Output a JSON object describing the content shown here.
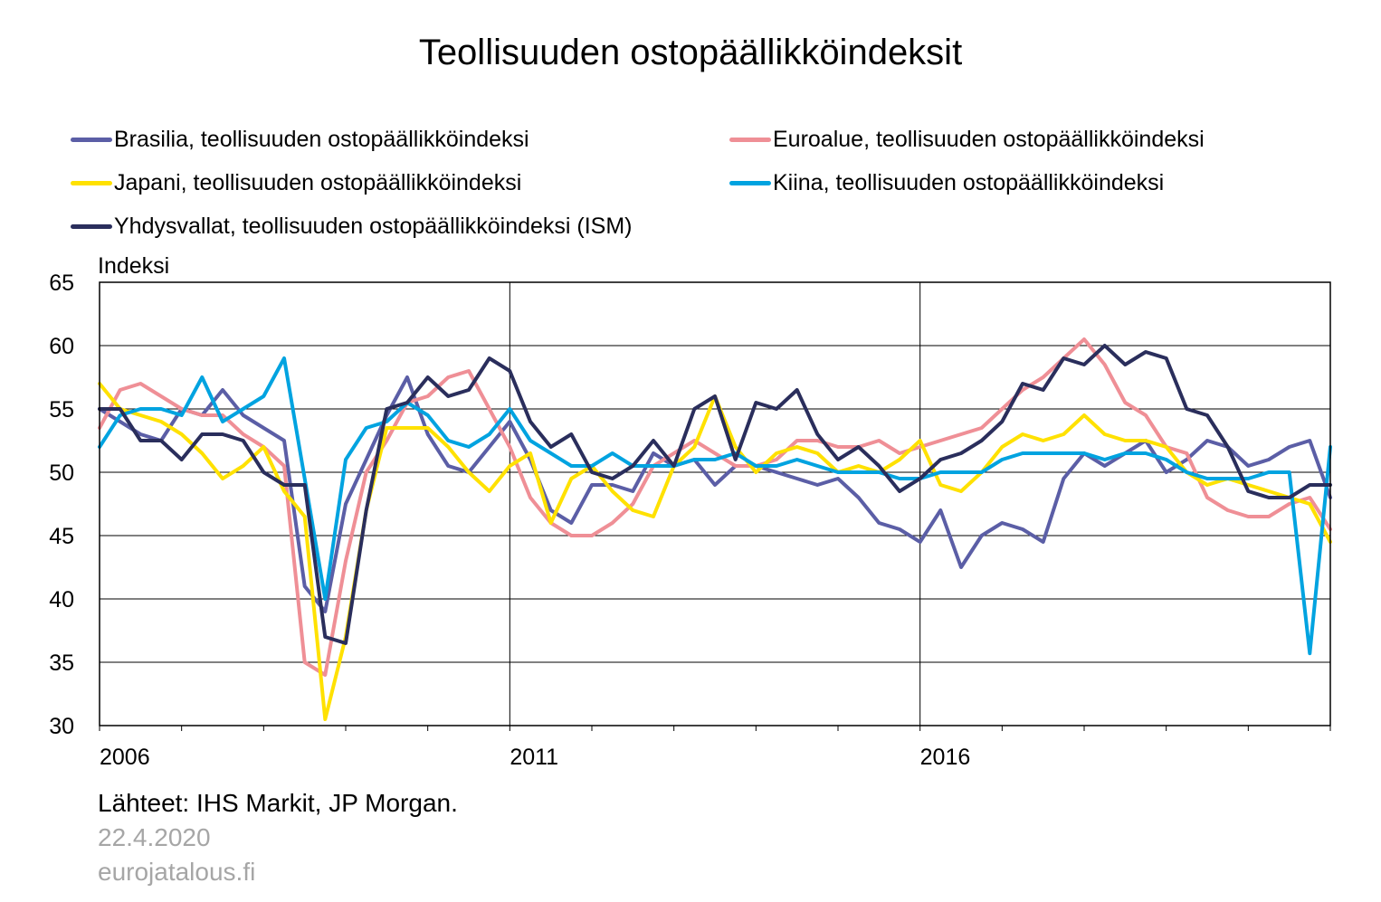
{
  "title": "Teollisuuden ostopäällikköindeksit",
  "legend": [
    {
      "label": "Brasilia, teollisuuden ostopäällikköindeksi",
      "color": "#5b5ea6"
    },
    {
      "label": "Euroalue, teollisuuden ostopäällikköindeksi",
      "color": "#ef8f96"
    },
    {
      "label": "Japani, teollisuuden ostopäällikköindeksi",
      "color": "#ffe100"
    },
    {
      "label": "Kiina, teollisuuden ostopäällikköindeksi",
      "color": "#00a3e0"
    },
    {
      "label": "Yhdysvallat, teollisuuden ostopäällikköindeksi (ISM)",
      "color": "#2a2e5c"
    }
  ],
  "source": "Lähteet:  IHS Markit,  JP Morgan.",
  "date": "22.4.2020",
  "site": "eurojatalous.fi",
  "chart_data": {
    "type": "line",
    "title": "Teollisuuden ostopäällikköindeksit",
    "ylabel": "Indeksi",
    "xlabel": "",
    "ylim": [
      30,
      65
    ],
    "yticks": [
      30,
      35,
      40,
      45,
      50,
      55,
      60,
      65
    ],
    "xlim": [
      2006.0,
      2021.0
    ],
    "xtick_labels": [
      {
        "label": "2006",
        "x": 2006.0
      },
      {
        "label": "2011",
        "x": 2011.0
      },
      {
        "label": "2016",
        "x": 2016.0
      }
    ],
    "grid": true,
    "legend_position": "top",
    "x_start": 2006.0,
    "x_step": 0.25,
    "series": [
      {
        "name": "Brasilia, teollisuuden ostopäällikköindeksi",
        "color": "#5b5ea6",
        "values": [
          55.0,
          54.0,
          53.0,
          52.5,
          55.0,
          54.5,
          56.5,
          54.5,
          53.5,
          52.5,
          41.0,
          39.0,
          47.5,
          51.0,
          54.5,
          57.5,
          53.0,
          50.5,
          50.0,
          52.0,
          54.0,
          51.0,
          47.0,
          46.0,
          49.0,
          49.0,
          48.5,
          51.5,
          50.5,
          51.0,
          49.0,
          50.5,
          50.5,
          50.0,
          49.5,
          49.0,
          49.5,
          48.0,
          46.0,
          45.5,
          44.5,
          47.0,
          42.5,
          45.0,
          46.0,
          45.5,
          44.5,
          49.5,
          51.5,
          50.5,
          51.5,
          52.5,
          50.0,
          51.0,
          52.5,
          52.0,
          50.5,
          51.0,
          52.0,
          52.5,
          48.0
        ]
      },
      {
        "name": "Euroalue, teollisuuden ostopäällikköindeksi",
        "color": "#ef8f96",
        "values": [
          53.5,
          56.5,
          57.0,
          56.0,
          55.0,
          54.5,
          54.5,
          53.0,
          52.0,
          50.5,
          35.0,
          34.0,
          43.0,
          50.0,
          52.5,
          55.5,
          56.0,
          57.5,
          58.0,
          55.0,
          52.0,
          48.0,
          46.0,
          45.0,
          45.0,
          46.0,
          47.5,
          50.5,
          51.5,
          52.5,
          51.5,
          50.5,
          50.5,
          51.0,
          52.5,
          52.5,
          52.0,
          52.0,
          52.5,
          51.5,
          52.0,
          52.5,
          53.0,
          53.5,
          55.0,
          56.5,
          57.5,
          59.0,
          60.5,
          58.5,
          55.5,
          54.5,
          52.0,
          51.5,
          48.0,
          47.0,
          46.5,
          46.5,
          47.5,
          48.0,
          45.5
        ]
      },
      {
        "name": "Japani, teollisuuden ostopäällikköindeksi",
        "color": "#ffe100",
        "values": [
          57.0,
          55.0,
          54.5,
          54.0,
          53.0,
          51.5,
          49.5,
          50.5,
          52.0,
          48.5,
          46.5,
          30.5,
          37.0,
          47.0,
          53.5,
          53.5,
          53.5,
          52.0,
          50.0,
          48.5,
          50.5,
          51.5,
          46.0,
          49.5,
          50.5,
          48.5,
          47.0,
          46.5,
          50.5,
          52.0,
          56.0,
          52.0,
          50.0,
          51.5,
          52.0,
          51.5,
          50.0,
          50.5,
          50.0,
          51.0,
          52.5,
          49.0,
          48.5,
          50.0,
          52.0,
          53.0,
          52.5,
          53.0,
          54.5,
          53.0,
          52.5,
          52.5,
          52.0,
          50.0,
          49.0,
          49.5,
          49.0,
          48.5,
          48.0,
          47.5,
          44.5
        ]
      },
      {
        "name": "Kiina, teollisuuden ostopäällikköindeksi",
        "color": "#00a3e0",
        "values": [
          52.0,
          54.5,
          55.0,
          55.0,
          54.5,
          57.5,
          54.0,
          55.0,
          56.0,
          59.0,
          49.5,
          40.0,
          51.0,
          53.5,
          54.0,
          55.5,
          54.5,
          52.5,
          52.0,
          53.0,
          55.0,
          52.5,
          51.5,
          50.5,
          50.5,
          51.5,
          50.5,
          50.5,
          50.5,
          51.0,
          51.0,
          51.5,
          50.5,
          50.5,
          51.0,
          50.5,
          50.0,
          50.0,
          50.0,
          49.5,
          49.5,
          50.0,
          50.0,
          50.0,
          51.0,
          51.5,
          51.5,
          51.5,
          51.5,
          51.0,
          51.5,
          51.5,
          51.0,
          50.0,
          49.5,
          49.5,
          49.5,
          50.0,
          50.0,
          35.7,
          52.0
        ]
      },
      {
        "name": "Yhdysvallat, teollisuuden ostopäällikköindeksi (ISM)",
        "color": "#2a2e5c",
        "values": [
          55.0,
          55.0,
          52.5,
          52.5,
          51.0,
          53.0,
          53.0,
          52.5,
          50.0,
          49.0,
          49.0,
          37.0,
          36.5,
          47.0,
          55.0,
          55.5,
          57.5,
          56.0,
          56.5,
          59.0,
          58.0,
          54.0,
          52.0,
          53.0,
          50.0,
          49.5,
          50.5,
          52.5,
          50.5,
          55.0,
          56.0,
          51.0,
          55.5,
          55.0,
          56.5,
          53.0,
          51.0,
          52.0,
          50.5,
          48.5,
          49.5,
          51.0,
          51.5,
          52.5,
          54.0,
          57.0,
          56.5,
          59.0,
          58.5,
          60.0,
          58.5,
          59.5,
          59.0,
          55.0,
          54.5,
          52.0,
          48.5,
          48.0,
          48.0,
          49.0,
          49.0
        ]
      }
    ]
  }
}
